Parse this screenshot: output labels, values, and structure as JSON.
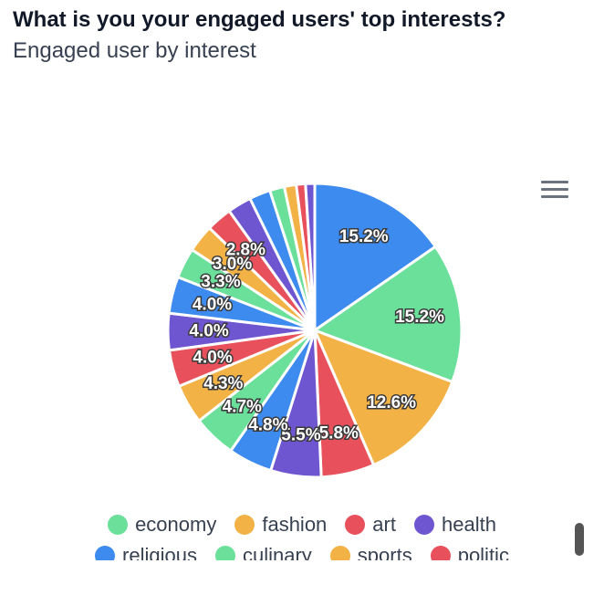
{
  "title": "What is you your engaged users' top interests?",
  "subtitle": "Engaged user by interest",
  "menu_icon": "hamburger-menu-icon",
  "chart_data": {
    "type": "pie",
    "title": "What is you your engaged users' top interests?",
    "subtitle": "Engaged user by interest",
    "slices": [
      {
        "label": "economy",
        "value": 15.2,
        "display": "15.2%",
        "color": "#3d8bef"
      },
      {
        "label": "fashion",
        "value": 15.2,
        "display": "15.2%",
        "color": "#6ae09a"
      },
      {
        "label": "art",
        "value": 12.6,
        "display": "12.6%",
        "color": "#f2b245"
      },
      {
        "label": "health",
        "value": 5.8,
        "display": "5.8%",
        "color": "#e8505b"
      },
      {
        "label": "religious",
        "value": 5.5,
        "display": "5.5%",
        "color": "#6f56d1"
      },
      {
        "label": "culinary",
        "value": 4.8,
        "display": "4.8%",
        "color": "#3d8bef"
      },
      {
        "label": "sports",
        "value": 4.7,
        "display": "4.7%",
        "color": "#6ae09a"
      },
      {
        "label": "politic",
        "value": 4.3,
        "display": "4.3%",
        "color": "#f2b245"
      },
      {
        "label": "",
        "value": 4.0,
        "display": "4.0%",
        "color": "#e8505b"
      },
      {
        "label": "",
        "value": 4.0,
        "display": "4.0%",
        "color": "#6f56d1"
      },
      {
        "label": "",
        "value": 4.0,
        "display": "4.0%",
        "color": "#3d8bef"
      },
      {
        "label": "",
        "value": 3.3,
        "display": "3.3%",
        "color": "#6ae09a"
      },
      {
        "label": "",
        "value": 3.0,
        "display": "3.0%",
        "color": "#f2b245"
      },
      {
        "label": "",
        "value": 2.8,
        "display": "2.8%",
        "color": "#e8505b"
      },
      {
        "label": "",
        "value": 2.6,
        "display": "",
        "color": "#6f56d1"
      },
      {
        "label": "",
        "value": 2.3,
        "display": "",
        "color": "#3d8bef"
      },
      {
        "label": "",
        "value": 1.6,
        "display": "",
        "color": "#6ae09a"
      },
      {
        "label": "",
        "value": 1.3,
        "display": "",
        "color": "#f2b245"
      },
      {
        "label": "",
        "value": 1.0,
        "display": "",
        "color": "#e8505b"
      },
      {
        "label": "",
        "value": 1.0,
        "display": "",
        "color": "#6f56d1"
      }
    ]
  },
  "legend": {
    "rows": [
      [
        {
          "label": "economy",
          "color": "#6ae09a"
        },
        {
          "label": "fashion",
          "color": "#f2b245"
        },
        {
          "label": "art",
          "color": "#e8505b"
        },
        {
          "label": "health",
          "color": "#6f56d1"
        }
      ],
      [
        {
          "label": "religious",
          "color": "#3d8bef"
        },
        {
          "label": "culinary",
          "color": "#6ae09a"
        },
        {
          "label": "sports",
          "color": "#f2b245"
        },
        {
          "label": "politic",
          "color": "#e8505b"
        }
      ]
    ]
  }
}
